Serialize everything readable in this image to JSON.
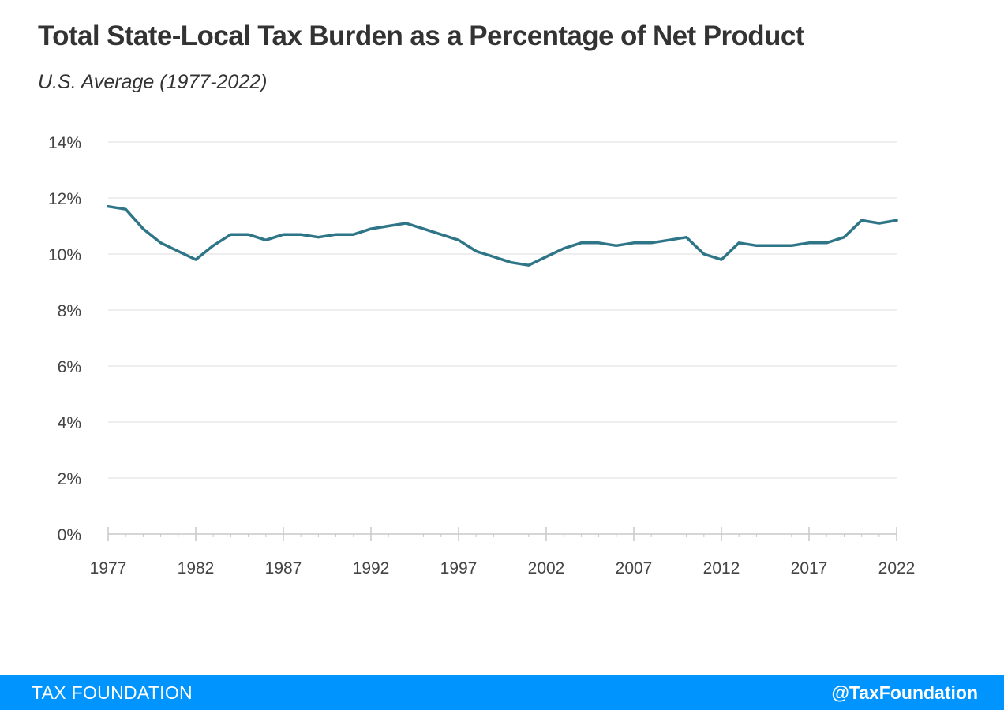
{
  "title": "Total State-Local Tax Burden as a Percentage of Net Product",
  "subtitle": "U.S. Average (1977-2022)",
  "footer": {
    "brand": "TAX FOUNDATION",
    "handle": "@TaxFoundation",
    "bar_color": "#0094ff"
  },
  "chart_data": {
    "type": "line",
    "title": "Total State-Local Tax Burden as a Percentage of Net Product",
    "subtitle": "U.S. Average (1977-2022)",
    "xlabel": "",
    "ylabel": "",
    "xlim": [
      1977,
      2022
    ],
    "ylim": [
      0,
      14
    ],
    "x_ticks": [
      1977,
      1982,
      1987,
      1992,
      1997,
      2002,
      2007,
      2012,
      2017,
      2022
    ],
    "x_tick_labels": [
      "1977",
      "1982",
      "1987",
      "1992",
      "1997",
      "2002",
      "2007",
      "2012",
      "2017",
      "2022"
    ],
    "y_ticks": [
      0,
      2,
      4,
      6,
      8,
      10,
      12,
      14
    ],
    "y_tick_labels": [
      "0%",
      "2%",
      "4%",
      "6%",
      "8%",
      "10%",
      "12%",
      "14%"
    ],
    "grid": "horizontal",
    "legend": "none",
    "series_color": "#2e7587",
    "x": [
      1977,
      1978,
      1979,
      1980,
      1981,
      1982,
      1983,
      1984,
      1985,
      1986,
      1987,
      1988,
      1989,
      1990,
      1991,
      1992,
      1993,
      1994,
      1995,
      1996,
      1997,
      1998,
      1999,
      2000,
      2001,
      2002,
      2003,
      2004,
      2005,
      2006,
      2007,
      2008,
      2009,
      2010,
      2011,
      2012,
      2013,
      2014,
      2015,
      2016,
      2017,
      2018,
      2019,
      2020,
      2021,
      2022
    ],
    "series": [
      {
        "values": [
          11.7,
          11.6,
          10.9,
          10.4,
          10.1,
          9.8,
          10.3,
          10.7,
          10.7,
          10.5,
          10.7,
          10.7,
          10.6,
          10.7,
          10.7,
          10.9,
          11.0,
          11.1,
          10.9,
          10.7,
          10.5,
          10.1,
          9.9,
          9.7,
          9.6,
          9.9,
          10.2,
          10.4,
          10.4,
          10.3,
          10.4,
          10.4,
          10.5,
          10.6,
          10.0,
          9.8,
          10.4,
          10.3,
          10.3,
          10.3,
          10.4,
          10.4,
          10.6,
          11.2,
          11.1,
          11.2
        ]
      }
    ]
  }
}
